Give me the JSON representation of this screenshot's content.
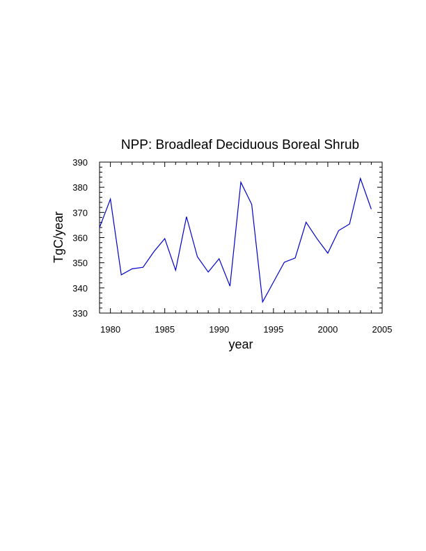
{
  "chart_data": {
    "type": "line",
    "title": "NPP: Broadleaf Deciduous Boreal Shrub",
    "xlabel": "year",
    "ylabel": "TgC/year",
    "xlim": [
      1979,
      2005
    ],
    "ylim": [
      330,
      390
    ],
    "x_ticks": [
      1980,
      1985,
      1990,
      1995,
      2000,
      2005
    ],
    "y_ticks": [
      330,
      340,
      350,
      360,
      370,
      380,
      390
    ],
    "x_tick_labels": [
      "1980",
      "1985",
      "1990",
      "1995",
      "2000",
      "2005"
    ],
    "y_tick_labels": [
      "330",
      "340",
      "350",
      "360",
      "370",
      "380",
      "390"
    ],
    "line_color": "#0000cc",
    "grid": false,
    "series": [
      {
        "x": [
          1979,
          1980,
          1981,
          1982,
          1983,
          1984,
          1985,
          1986,
          1987,
          1988,
          1989,
          1990,
          1991,
          1992,
          1993,
          1994,
          1995,
          1996,
          1997,
          1998,
          1999,
          2000,
          2001,
          2002,
          2003,
          2004
        ],
        "values": [
          364.0,
          375.3,
          345.2,
          347.6,
          348.2,
          354.4,
          359.6,
          347.0,
          368.3,
          352.4,
          346.3,
          351.6,
          340.7,
          382.0,
          373.2,
          334.4,
          342.3,
          350.2,
          351.9,
          366.1,
          359.6,
          353.8,
          362.8,
          365.4,
          383.5,
          371.3
        ]
      }
    ]
  }
}
